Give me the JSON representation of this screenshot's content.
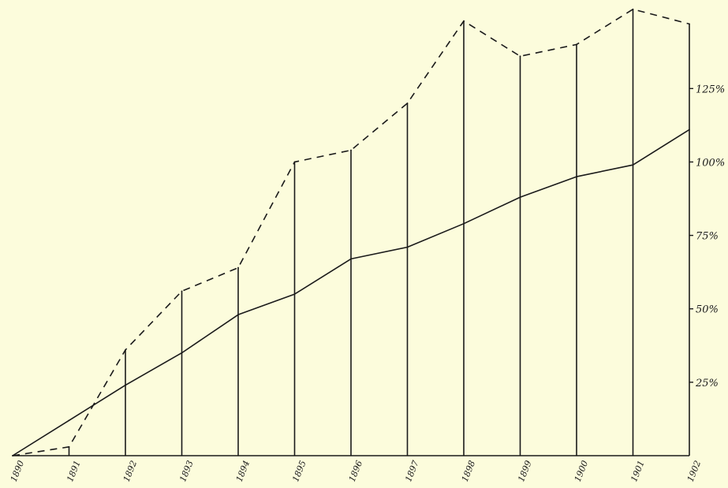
{
  "chart_data": {
    "type": "line",
    "title": "",
    "xlabel": "",
    "ylabel": "",
    "x": [
      1890,
      1891,
      1892,
      1893,
      1894,
      1895,
      1896,
      1897,
      1898,
      1899,
      1900,
      1901,
      1902
    ],
    "x_tick_labels": [
      "1890",
      "1891",
      "1892",
      "1893",
      "1894",
      "1895",
      "1896",
      "1897",
      "1898",
      "1899",
      "1900",
      "1901",
      "1902"
    ],
    "y_tick_labels": [
      {
        "value": 25,
        "label": "25%"
      },
      {
        "value": 50,
        "label": "50%"
      },
      {
        "value": 75,
        "label": "75%"
      },
      {
        "value": 100,
        "label": "100%"
      },
      {
        "value": 125,
        "label": "125%"
      }
    ],
    "ylim": [
      0,
      153
    ],
    "y_axis_side": "right",
    "grid": false,
    "series": [
      {
        "style": "dashed",
        "color": "#1a1a1a",
        "values": [
          0,
          3,
          36,
          56,
          64,
          100,
          104,
          120,
          148,
          136,
          140,
          152,
          147
        ]
      },
      {
        "style": "solid",
        "color": "#1a1a1a",
        "values": [
          0,
          12,
          24,
          35,
          48,
          55,
          67,
          71,
          79,
          88,
          95,
          99,
          111
        ]
      }
    ]
  }
}
